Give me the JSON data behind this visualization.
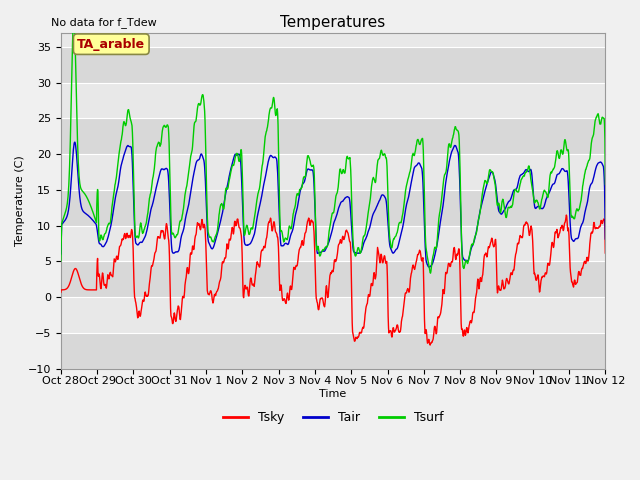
{
  "title": "Temperatures",
  "subtitle": "No data for f_Tdew",
  "xlabel": "Time",
  "ylabel": "Temperature (C)",
  "ylim": [
    -10,
    37
  ],
  "yticks": [
    -10,
    -5,
    0,
    5,
    10,
    15,
    20,
    25,
    30,
    35
  ],
  "xtick_labels": [
    "Oct 28",
    "Oct 29",
    "Oct 30",
    "Oct 31",
    "Nov 1",
    "Nov 2",
    "Nov 3",
    "Nov 4",
    "Nov 5",
    "Nov 6",
    "Nov 7",
    "Nov 8",
    "Nov 9",
    "Nov 10",
    "Nov 11",
    "Nov 12"
  ],
  "legend_labels": [
    "Tsky",
    "Tair",
    "Tsurf"
  ],
  "legend_colors": [
    "#ff0000",
    "#0000cc",
    "#00cc00"
  ],
  "annotation_text": "TA_arable",
  "annotation_color": "#aa0000",
  "annotation_bg": "#ffff99",
  "annotation_border": "#888844",
  "fig_bg": "#f0f0f0",
  "plot_bg_light": "#e8e8e8",
  "plot_bg_dark": "#d8d8d8",
  "line_width": 1.0,
  "title_fontsize": 11,
  "axis_fontsize": 8,
  "tick_fontsize": 8
}
